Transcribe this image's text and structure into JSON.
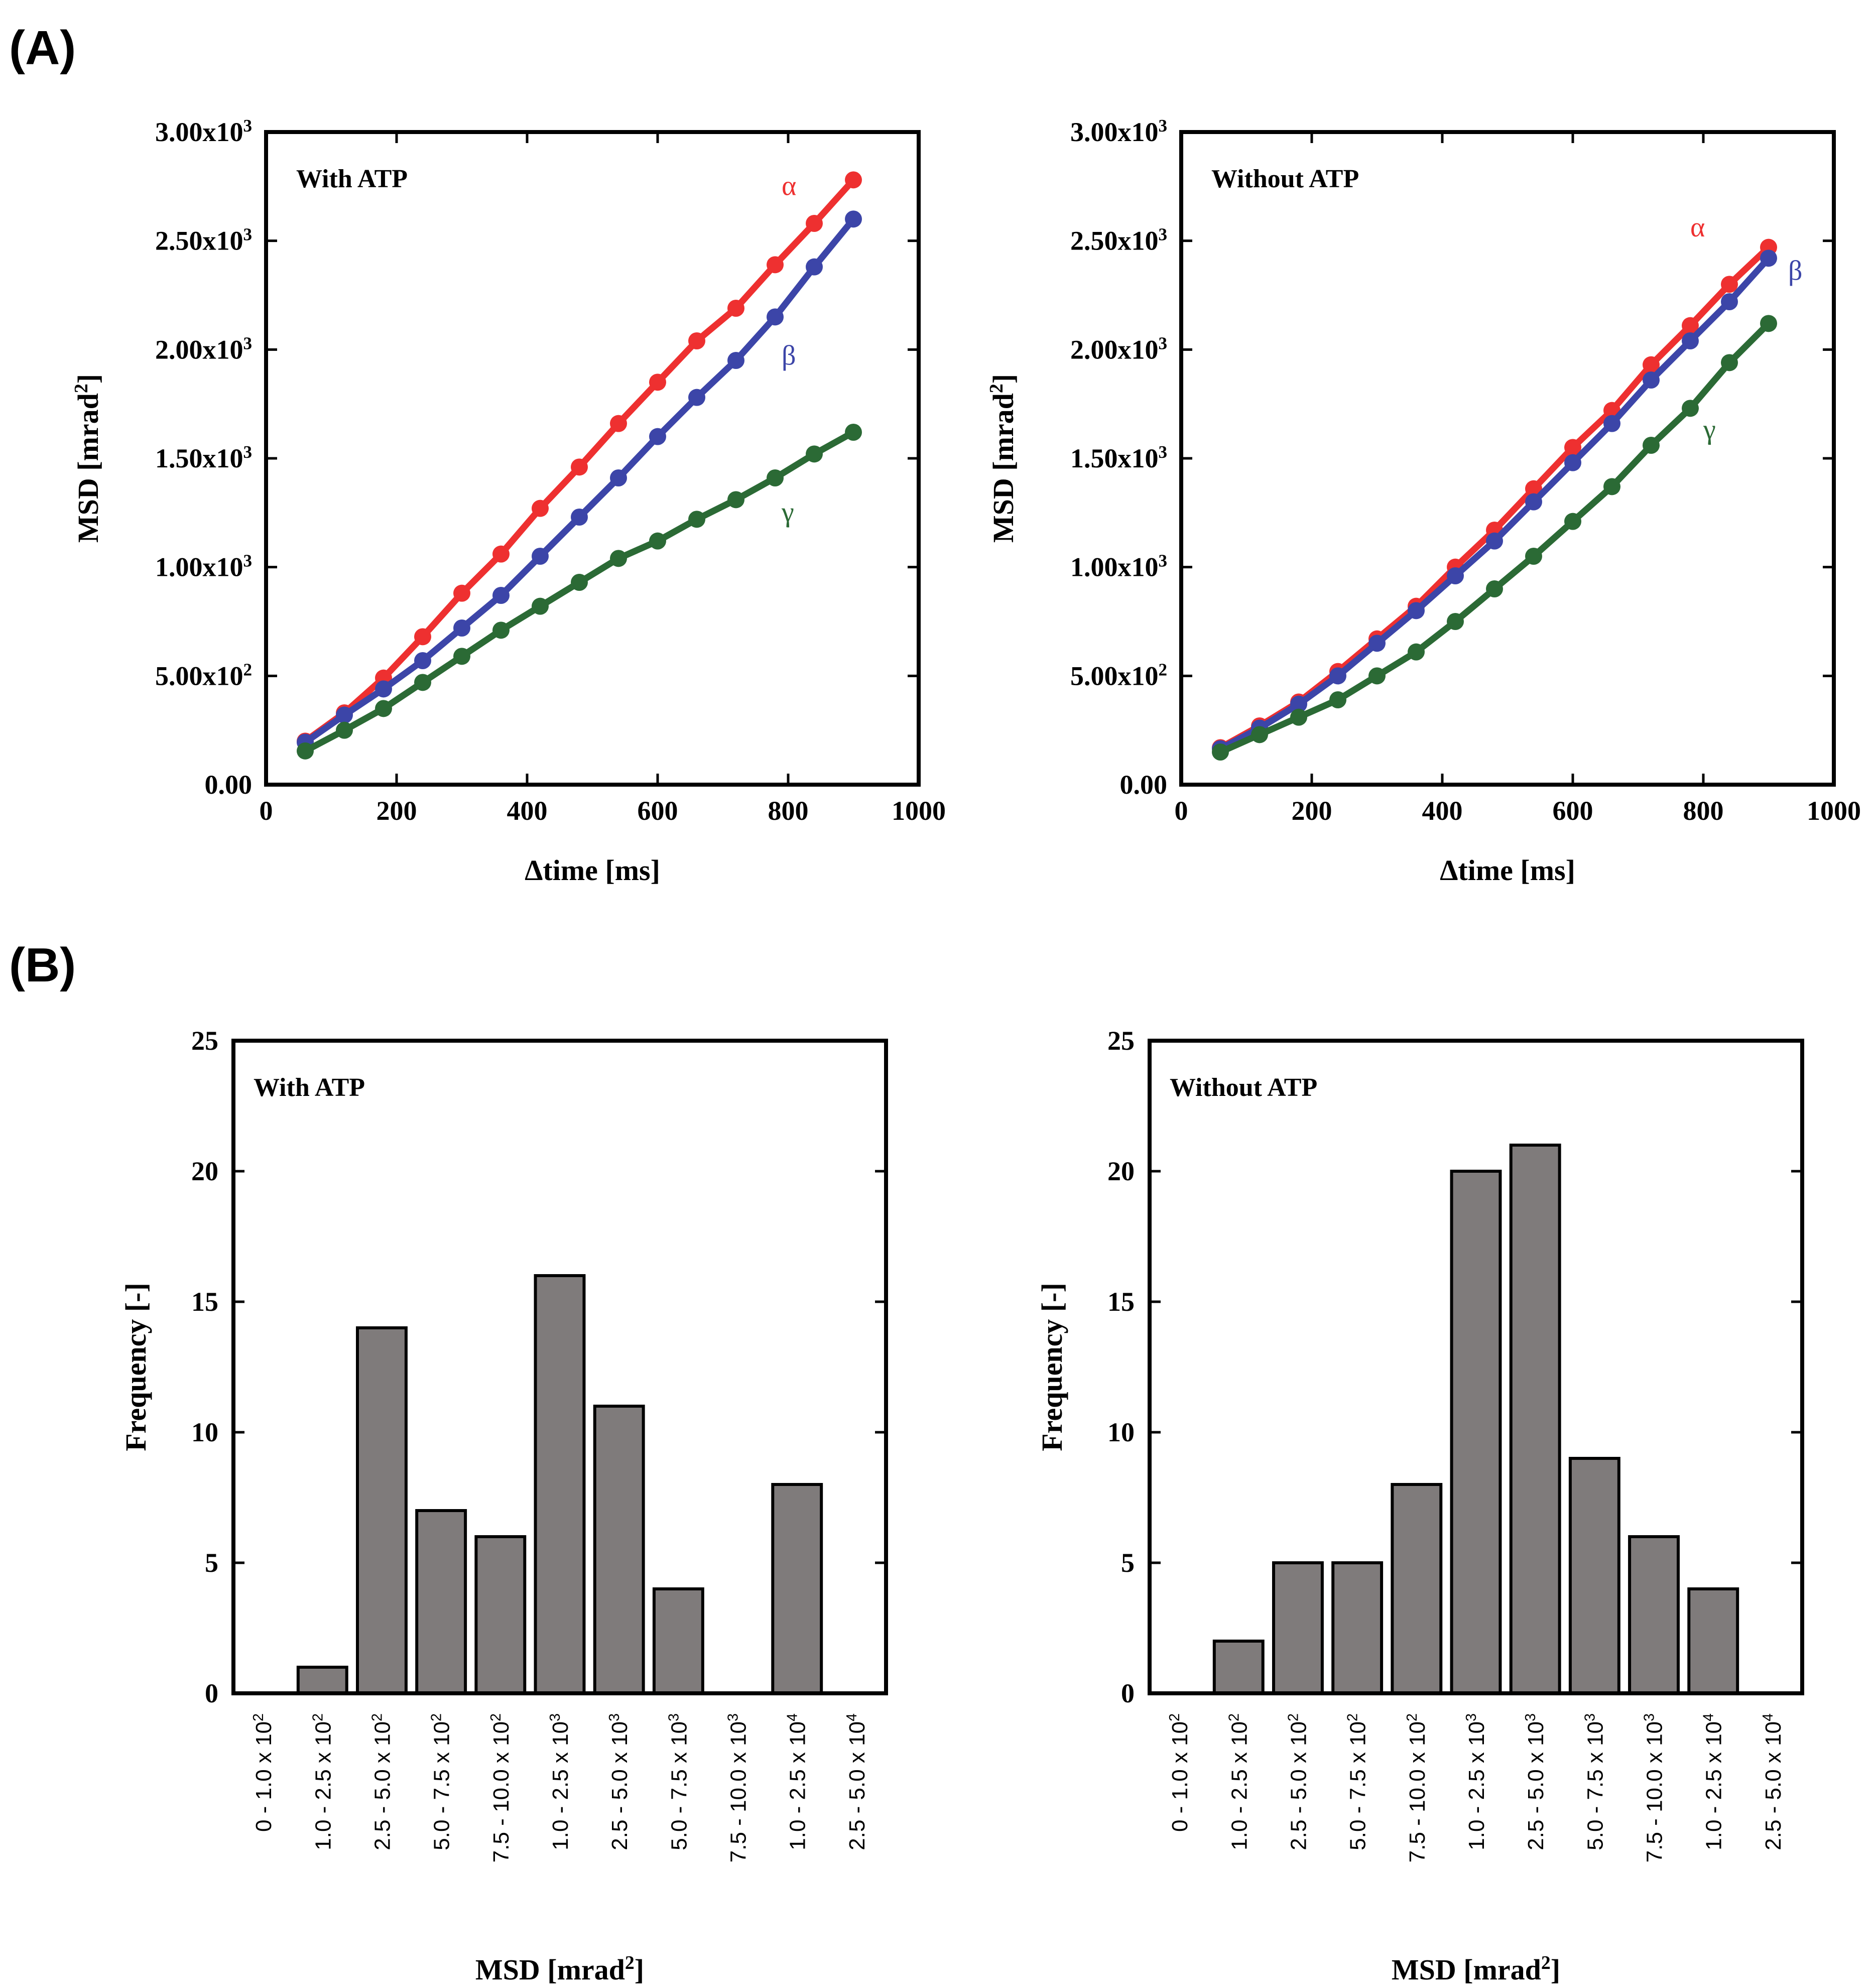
{
  "panel_labels": {
    "a": "(A)",
    "b": "(B)"
  },
  "chart_data": [
    {
      "id": "A-with",
      "type": "line",
      "title": "With ATP",
      "xlabel": "Δtime [ms]",
      "ylabel": "MSD [mrad²]",
      "ylabel_parts": {
        "pre": "MSD  [mrad",
        "sup": "2",
        "post": "]"
      },
      "xlim": [
        0,
        1000
      ],
      "ylim": [
        0,
        3000
      ],
      "xticks": [
        0,
        200,
        400,
        600,
        800,
        1000
      ],
      "yticks": [
        0,
        500,
        1000,
        1500,
        2000,
        2500,
        3000
      ],
      "ytick_labels": [
        {
          "base": "0.00",
          "exp": ""
        },
        {
          "base": "5.00x10",
          "exp": "2"
        },
        {
          "base": "1.00x10",
          "exp": "3"
        },
        {
          "base": "1.50x10",
          "exp": "3"
        },
        {
          "base": "2.00x10",
          "exp": "3"
        },
        {
          "base": "2.50x10",
          "exp": "3"
        },
        {
          "base": "3.00x10",
          "exp": "3"
        }
      ],
      "x": [
        60,
        120,
        180,
        240,
        300,
        360,
        420,
        480,
        540,
        600,
        660,
        720,
        780,
        840,
        900
      ],
      "series": [
        {
          "name": "α",
          "color": "#ee3030",
          "values": [
            200,
            330,
            490,
            680,
            880,
            1060,
            1270,
            1460,
            1660,
            1850,
            2040,
            2190,
            2390,
            2580,
            2780
          ]
        },
        {
          "name": "β",
          "color": "#3c45a8",
          "values": [
            195,
            320,
            440,
            570,
            720,
            870,
            1050,
            1230,
            1410,
            1600,
            1780,
            1950,
            2150,
            2380,
            2600
          ]
        },
        {
          "name": "γ",
          "color": "#2b6a35",
          "values": [
            155,
            250,
            350,
            470,
            590,
            710,
            820,
            930,
            1040,
            1120,
            1220,
            1310,
            1410,
            1520,
            1620
          ]
        }
      ],
      "labels": [
        {
          "series": "α",
          "x": 790,
          "y": 2710
        },
        {
          "series": "β",
          "x": 790,
          "y": 1930
        },
        {
          "series": "γ",
          "x": 790,
          "y": 1210
        }
      ]
    },
    {
      "id": "A-without",
      "type": "line",
      "title": "Without ATP",
      "xlabel": "Δtime [ms]",
      "ylabel": "MSD [mrad²]",
      "ylabel_parts": {
        "pre": "MSD  [mrad",
        "sup": "2",
        "post": "]"
      },
      "xlim": [
        0,
        1000
      ],
      "ylim": [
        0,
        3000
      ],
      "xticks": [
        0,
        200,
        400,
        600,
        800,
        1000
      ],
      "yticks": [
        0,
        500,
        1000,
        1500,
        2000,
        2500,
        3000
      ],
      "ytick_labels": [
        {
          "base": "0.00",
          "exp": ""
        },
        {
          "base": "5.00x10",
          "exp": "2"
        },
        {
          "base": "1.00x10",
          "exp": "3"
        },
        {
          "base": "1.50x10",
          "exp": "3"
        },
        {
          "base": "2.00x10",
          "exp": "3"
        },
        {
          "base": "2.50x10",
          "exp": "3"
        },
        {
          "base": "3.00x10",
          "exp": "3"
        }
      ],
      "x": [
        60,
        120,
        180,
        240,
        300,
        360,
        420,
        480,
        540,
        600,
        660,
        720,
        780,
        840,
        900
      ],
      "series": [
        {
          "name": "α",
          "color": "#ee3030",
          "values": [
            170,
            270,
            380,
            520,
            670,
            820,
            1000,
            1170,
            1360,
            1550,
            1720,
            1930,
            2110,
            2300,
            2470
          ]
        },
        {
          "name": "β",
          "color": "#3c45a8",
          "values": [
            165,
            260,
            370,
            500,
            650,
            800,
            960,
            1120,
            1300,
            1480,
            1660,
            1860,
            2040,
            2220,
            2420
          ]
        },
        {
          "name": "γ",
          "color": "#2b6a35",
          "values": [
            150,
            230,
            310,
            390,
            500,
            610,
            750,
            900,
            1050,
            1210,
            1370,
            1560,
            1730,
            1940,
            2120
          ]
        }
      ],
      "labels": [
        {
          "series": "α",
          "x": 780,
          "y": 2520
        },
        {
          "series": "β",
          "x": 930,
          "y": 2320
        },
        {
          "series": "γ",
          "x": 800,
          "y": 1590
        }
      ]
    },
    {
      "id": "B-with",
      "type": "bar",
      "title": "With ATP",
      "xlabel": "MSD [mrad²]",
      "ylabel": "Frequency [-]",
      "xlabel_parts": {
        "pre": "MSD [mrad",
        "sup": "2",
        "post": "]"
      },
      "ylim": [
        0,
        25
      ],
      "yticks": [
        0,
        5,
        10,
        15,
        20,
        25
      ],
      "bar_color": "#7f7b7b",
      "categories": [
        {
          "range": "0 - 1.0 x 10",
          "exp": "2"
        },
        {
          "range": "1.0 - 2.5 x 10",
          "exp": "2"
        },
        {
          "range": "2.5 - 5.0 x 10",
          "exp": "2"
        },
        {
          "range": "5.0 - 7.5 x 10",
          "exp": "2"
        },
        {
          "range": "7.5 - 10.0 x 10",
          "exp": "2"
        },
        {
          "range": "1.0 - 2.5 x 10",
          "exp": "3"
        },
        {
          "range": "2.5 - 5.0 x 10",
          "exp": "3"
        },
        {
          "range": "5.0 - 7.5 x 10",
          "exp": "3"
        },
        {
          "range": "7.5 - 10.0 x 10",
          "exp": "3"
        },
        {
          "range": "1.0 - 2.5 x 10",
          "exp": "4"
        },
        {
          "range": "2.5 - 5.0 x 10",
          "exp": "4"
        }
      ],
      "values": [
        0,
        1,
        14,
        7,
        6,
        16,
        11,
        4,
        0,
        8,
        0
      ]
    },
    {
      "id": "B-without",
      "type": "bar",
      "title": "Without ATP",
      "xlabel": "MSD [mrad²]",
      "ylabel": "Frequency [-]",
      "xlabel_parts": {
        "pre": "MSD [mrad",
        "sup": "2",
        "post": "]"
      },
      "ylim": [
        0,
        25
      ],
      "yticks": [
        0,
        5,
        10,
        15,
        20,
        25
      ],
      "bar_color": "#7f7b7b",
      "categories": [
        {
          "range": "0 - 1.0 x 10",
          "exp": "2"
        },
        {
          "range": "1.0 - 2.5 x 10",
          "exp": "2"
        },
        {
          "range": "2.5 - 5.0 x 10",
          "exp": "2"
        },
        {
          "range": "5.0 - 7.5 x 10",
          "exp": "2"
        },
        {
          "range": "7.5 - 10.0 x 10",
          "exp": "2"
        },
        {
          "range": "1.0 - 2.5 x 10",
          "exp": "3"
        },
        {
          "range": "2.5 - 5.0 x 10",
          "exp": "3"
        },
        {
          "range": "5.0 - 7.5 x 10",
          "exp": "3"
        },
        {
          "range": "7.5 - 10.0 x 10",
          "exp": "3"
        },
        {
          "range": "1.0 - 2.5 x 10",
          "exp": "4"
        },
        {
          "range": "2.5 - 5.0 x 10",
          "exp": "4"
        }
      ],
      "values": [
        0,
        2,
        5,
        5,
        8,
        20,
        21,
        9,
        6,
        4,
        0
      ]
    }
  ]
}
